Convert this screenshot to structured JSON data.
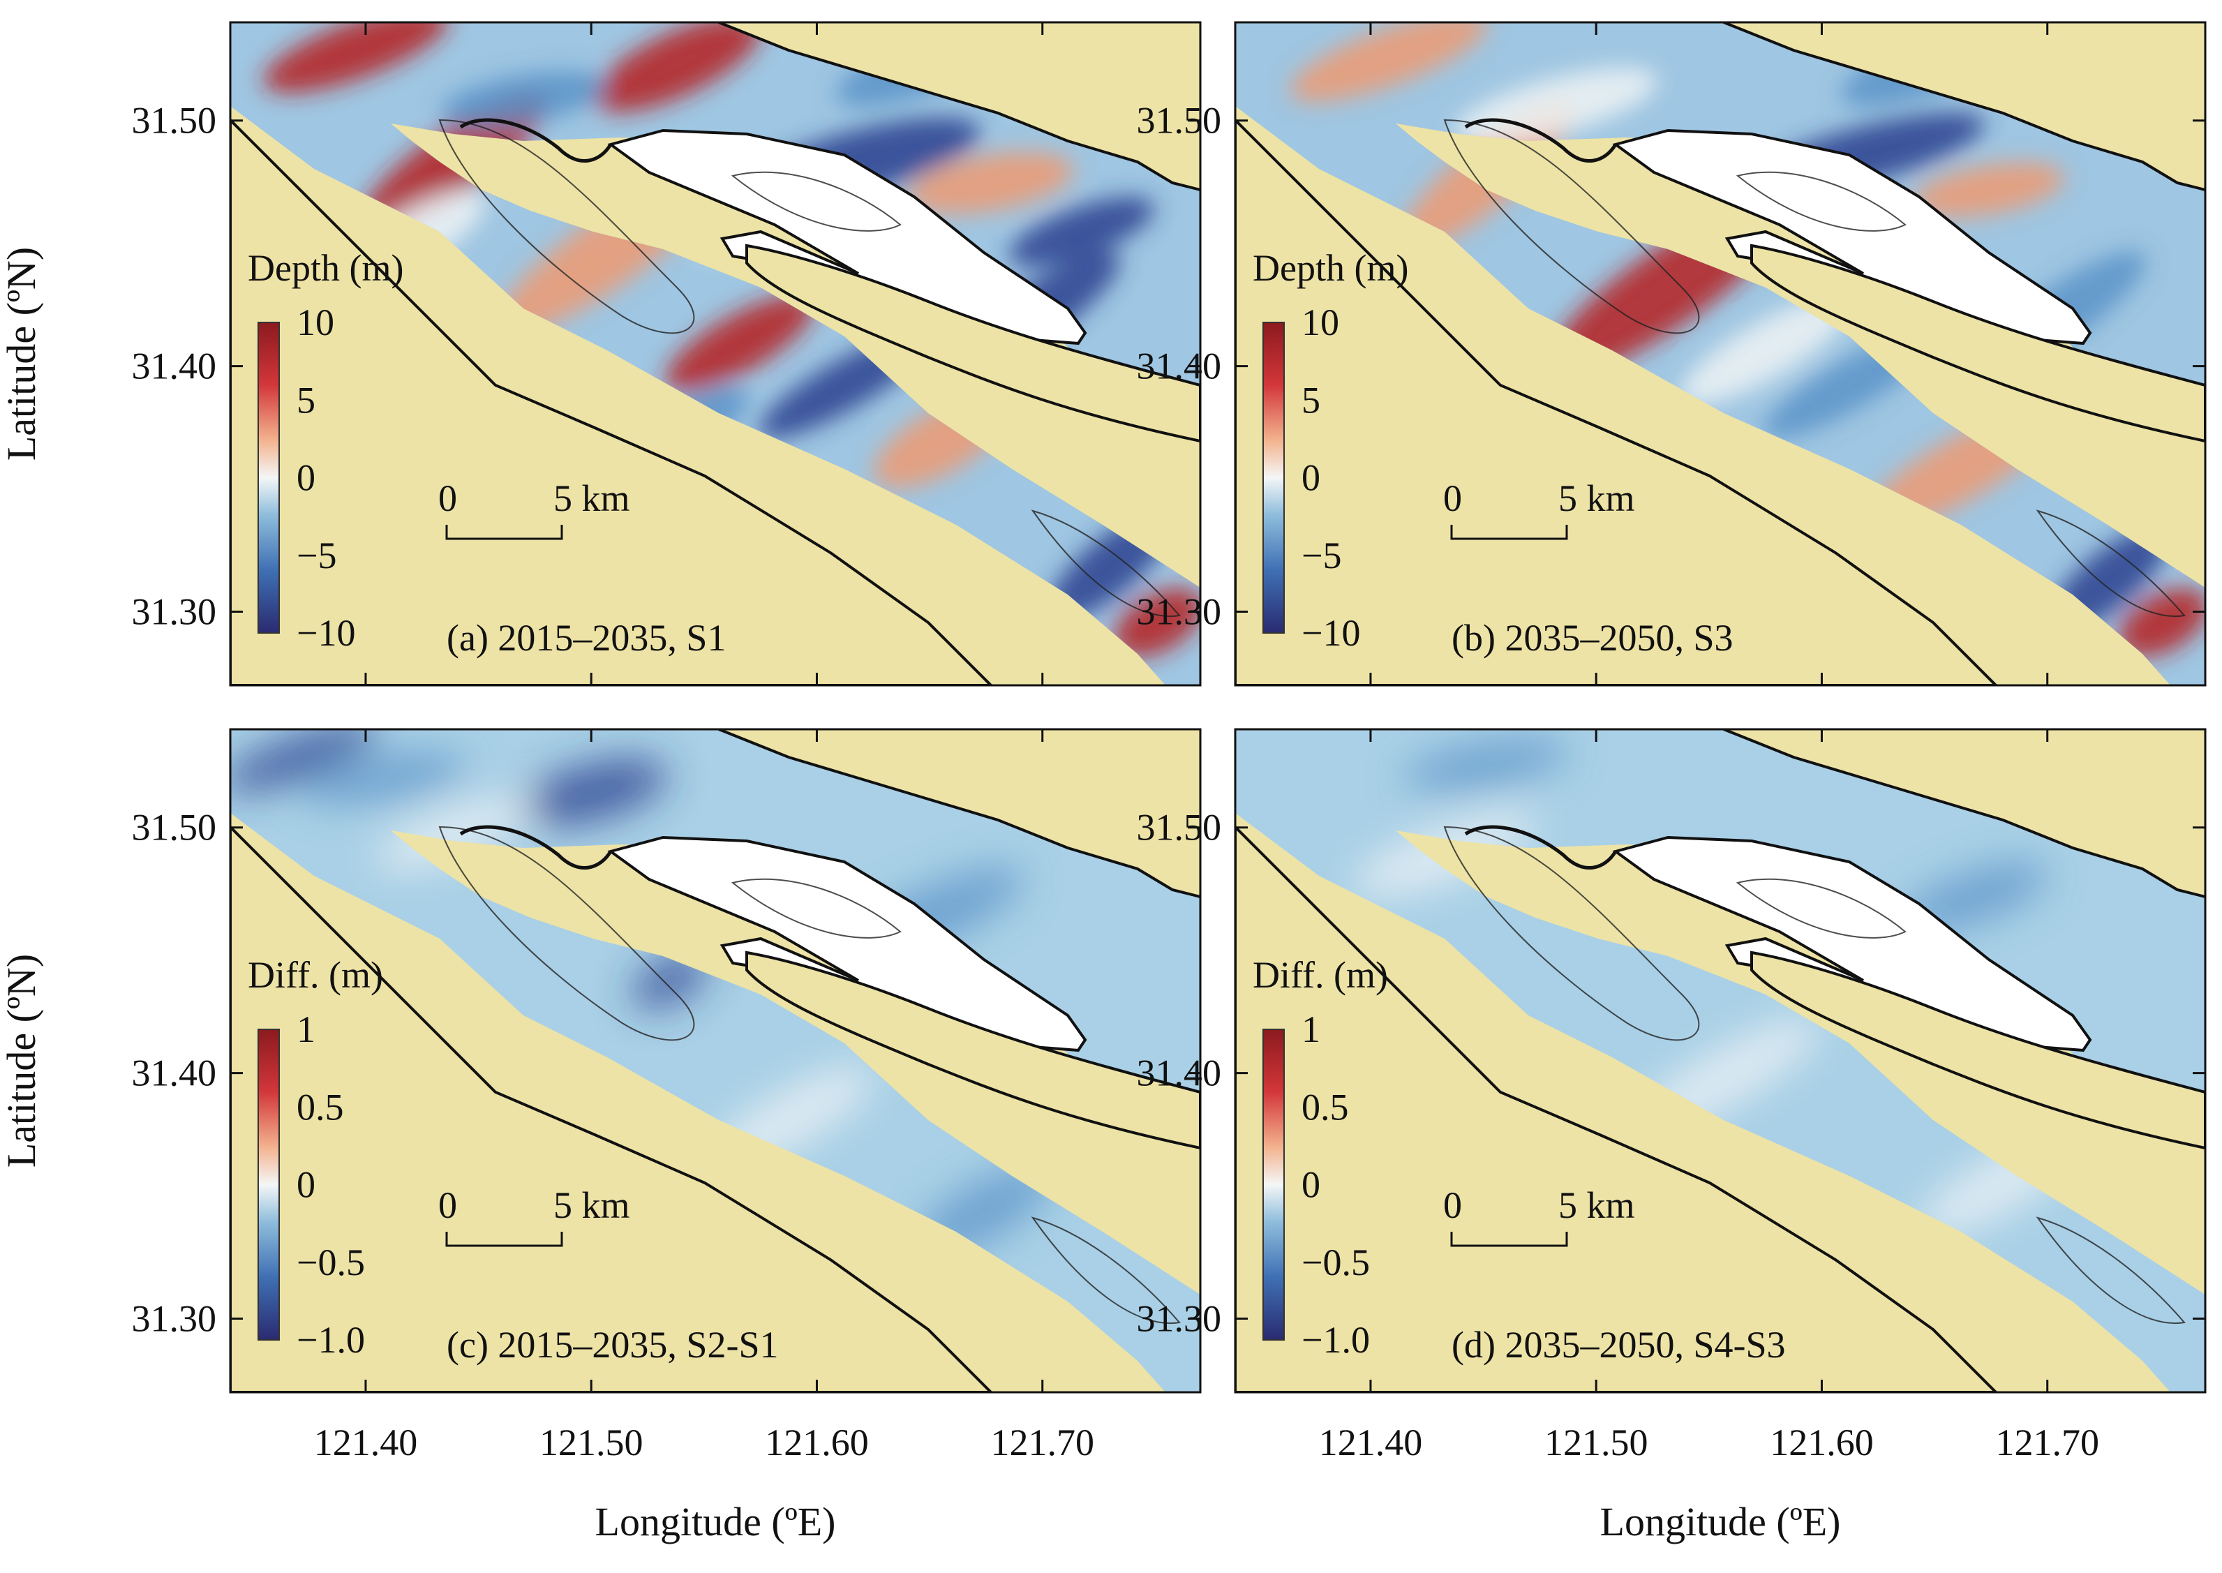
{
  "figure": {
    "ylabel": "Latitude (ºN)",
    "xlabel": "Longitude (ºE)",
    "lat_ticks": [
      "31.50",
      "31.40",
      "31.30"
    ],
    "lon_ticks": [
      "121.40",
      "121.50",
      "121.60",
      "121.70"
    ],
    "lat_values": [
      31.5,
      31.4,
      31.3
    ],
    "lon_values": [
      121.4,
      121.5,
      121.6,
      121.7
    ],
    "lon_range": [
      121.34,
      121.77
    ],
    "lat_range": [
      31.27,
      31.54
    ]
  },
  "colors": {
    "land": "#ede3a6",
    "island": "#ffffff",
    "neg_strong": "#283e8e",
    "neg_mid": "#5b93c8",
    "neutral": "#eef3f5",
    "pos_mid": "#ee9a72",
    "pos_strong": "#b51d22",
    "diff_base": "#a9d0e6"
  },
  "panels": [
    {
      "id": "a",
      "caption": "(a) 2015–2035, S1",
      "colorbar_title": "Depth (m)",
      "colorbar_ticks": [
        "10",
        "5",
        "0",
        "−5",
        "−10"
      ],
      "colorbar_values": [
        10,
        5,
        0,
        -5,
        -10
      ],
      "colorbar_range": [
        -10,
        10
      ],
      "scalebar": {
        "start": "0",
        "end": "5 km"
      },
      "kind": "depth"
    },
    {
      "id": "b",
      "caption": "(b) 2035–2050, S3",
      "colorbar_title": "Depth (m)",
      "colorbar_ticks": [
        "10",
        "5",
        "0",
        "−5",
        "−10"
      ],
      "colorbar_values": [
        10,
        5,
        0,
        -5,
        -10
      ],
      "colorbar_range": [
        -10,
        10
      ],
      "scalebar": {
        "start": "0",
        "end": "5 km"
      },
      "kind": "depth"
    },
    {
      "id": "c",
      "caption": "(c) 2015–2035, S2-S1",
      "colorbar_title": "Diff. (m)",
      "colorbar_ticks": [
        "1",
        "0.5",
        "0",
        "−0.5",
        "−1.0"
      ],
      "colorbar_values": [
        1,
        0.5,
        0,
        -0.5,
        -1.0
      ],
      "colorbar_range": [
        -1.0,
        1
      ],
      "scalebar": {
        "start": "0",
        "end": "5 km"
      },
      "kind": "diff"
    },
    {
      "id": "d",
      "caption": "(d) 2035–2050, S4-S3",
      "colorbar_title": "Diff. (m)",
      "colorbar_ticks": [
        "1",
        "0.5",
        "0",
        "−0.5",
        "−1.0"
      ],
      "colorbar_values": [
        1,
        0.5,
        0,
        -0.5,
        -1.0
      ],
      "colorbar_range": [
        -1.0,
        1
      ],
      "scalebar": {
        "start": "0",
        "end": "5 km"
      },
      "kind": "diff"
    }
  ]
}
